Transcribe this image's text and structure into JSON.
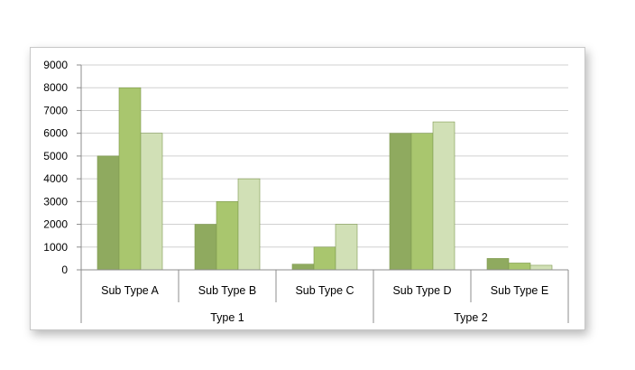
{
  "chart_data": {
    "type": "bar",
    "title": "",
    "xlabel": "",
    "ylabel": "",
    "ylim": [
      0,
      9000
    ],
    "yticks": [
      0,
      1000,
      2000,
      3000,
      4000,
      5000,
      6000,
      7000,
      8000,
      9000
    ],
    "grid": true,
    "legend": "none",
    "categories": [
      "Sub Type A",
      "Sub Type B",
      "Sub Type C",
      "Sub Type D",
      "Sub Type E"
    ],
    "groups": [
      {
        "label": "Type 1",
        "span": 3
      },
      {
        "label": "Type 2",
        "span": 2
      }
    ],
    "series": [
      {
        "color": "#8faa5f",
        "values": [
          5000,
          2000,
          250,
          6000,
          500
        ]
      },
      {
        "color": "#a9c66e",
        "values": [
          8000,
          3000,
          1000,
          6000,
          300
        ]
      },
      {
        "color": "#d1e0b6",
        "values": [
          6000,
          4000,
          2000,
          6500,
          200
        ]
      }
    ],
    "colors": {
      "gridline": "#d0d0d0",
      "axis": "#8c8c8c",
      "bar_stroke": "#7f9a4f"
    }
  }
}
